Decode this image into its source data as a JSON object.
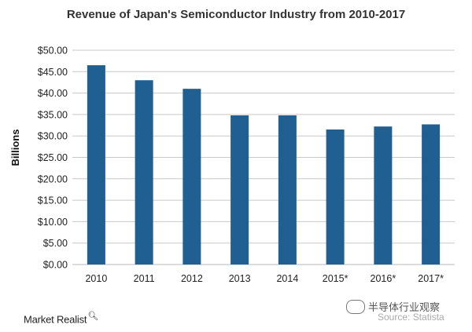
{
  "chart_data": {
    "type": "bar",
    "title": "Revenue of Japan's Semiconductor Industry from 2010-2017",
    "xlabel": "",
    "ylabel": "Billions",
    "categories": [
      "2010",
      "2011",
      "2012",
      "2013",
      "2014",
      "2015*",
      "2016*",
      "2017*"
    ],
    "values": [
      46.5,
      43.0,
      41.0,
      34.8,
      34.8,
      31.5,
      32.2,
      32.7
    ],
    "ylim": [
      0,
      50
    ],
    "yticks": [
      "$0.00",
      "$5.00",
      "$10.00",
      "$15.00",
      "$20.00",
      "$25.00",
      "$30.00",
      "$35.00",
      "$40.00",
      "$45.00",
      "$50.00"
    ],
    "grid": true,
    "bar_color": "#1f5f92",
    "grid_color": "#c8c8c8"
  },
  "footer": {
    "brand": "Market Realist",
    "brand_icon": "magnifier-icon",
    "watermark": "半导体行业观察",
    "source": "Source: Statista"
  }
}
